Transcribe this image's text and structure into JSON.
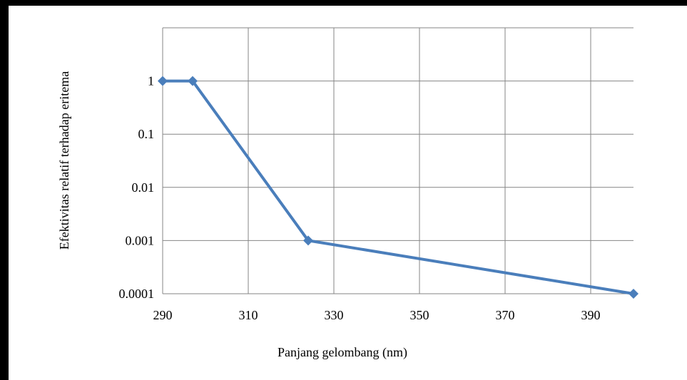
{
  "chart_data": {
    "type": "line",
    "x_label": "Panjang gelombang (nm)",
    "y_label": "Efektivitas  relatif terhadap eritema",
    "x": [
      290,
      297,
      324,
      400
    ],
    "series": [
      {
        "name": null,
        "color": "#4a7ebb",
        "values": [
          1,
          1,
          0.001,
          0.0001
        ]
      }
    ],
    "xlim": [
      290,
      400
    ],
    "xticks": [
      290,
      310,
      330,
      350,
      370,
      390
    ],
    "ylim": [
      0.0001,
      10
    ],
    "yticks": [
      0.0001,
      0.001,
      0.01,
      0.1,
      1
    ],
    "log_y": true,
    "grid": true
  }
}
